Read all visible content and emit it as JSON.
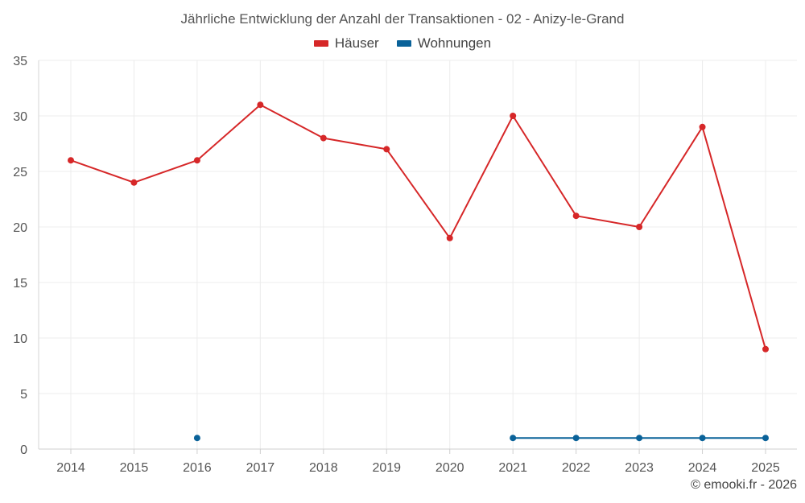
{
  "chart_data": {
    "type": "line",
    "title": "Jährliche Entwicklung der Anzahl der Transaktionen - 02 - Anizy-le-Grand",
    "x": [
      "2014",
      "2015",
      "2016",
      "2017",
      "2018",
      "2019",
      "2020",
      "2021",
      "2022",
      "2023",
      "2024",
      "2025"
    ],
    "series": [
      {
        "name": "Häuser",
        "color": "#d62728",
        "values": [
          26,
          24,
          26,
          31,
          28,
          27,
          19,
          30,
          21,
          20,
          29,
          9
        ]
      },
      {
        "name": "Wohnungen",
        "color": "#0a6299",
        "values": [
          null,
          null,
          1,
          null,
          null,
          null,
          null,
          1,
          1,
          1,
          1,
          1
        ]
      }
    ],
    "ylim": [
      0,
      35
    ],
    "yticks": [
      0,
      5,
      10,
      15,
      20,
      25,
      30,
      35
    ],
    "grid": true,
    "legend": "top-center"
  },
  "footer": {
    "credit": "© emooki.fr - 2026"
  }
}
